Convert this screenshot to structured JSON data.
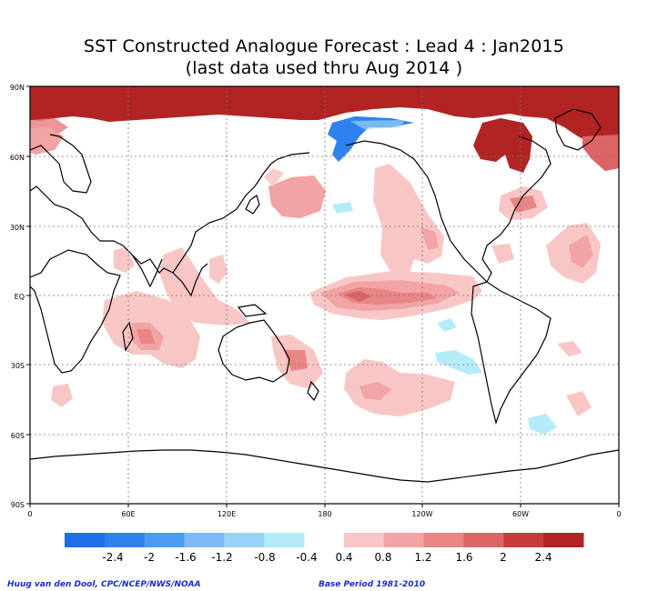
{
  "title": {
    "line1": "SST Constructed Analogue Forecast : Lead 4 : Jan2015",
    "line2": "(last data used thru Aug 2014 )"
  },
  "axes": {
    "lat_labels": [
      "90N",
      "60N",
      "30N",
      "EQ",
      "30S",
      "60S",
      "90S"
    ],
    "lon_labels": [
      "0",
      "60E",
      "120E",
      "180",
      "120W",
      "60W",
      "0"
    ]
  },
  "colorbar": {
    "negative_labels": [
      "-2.4",
      "-2",
      "-1.6",
      "-1.2",
      "-0.8",
      "-0.4"
    ],
    "positive_labels": [
      "0.4",
      "0.8",
      "1.2",
      "1.6",
      "2",
      "2.4"
    ],
    "negative_colors": [
      "#1e6ee6",
      "#2f82ee",
      "#4a9bf2",
      "#7fbaf6",
      "#9ad2f6",
      "#b5ecfa"
    ],
    "positive_colors": [
      "#f9c6c6",
      "#f2a3a3",
      "#e88585",
      "#dc6464",
      "#c83c3c",
      "#b22424"
    ]
  },
  "credits": {
    "left": "Huug van den Dool, CPC/NCEP/NWS/NOAA",
    "right": "Base Period 1981-2010"
  }
}
